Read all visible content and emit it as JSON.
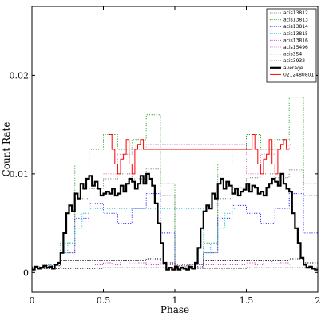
{
  "chart_data": {
    "type": "line",
    "xlabel": "Phase",
    "ylabel": "Count Rate",
    "xlim": [
      0,
      2
    ],
    "ylim": [
      -0.002,
      0.027
    ],
    "x_ticks": [
      {
        "value": 0,
        "label": "0"
      },
      {
        "value": 0.5,
        "label": "0.5"
      },
      {
        "value": 1,
        "label": "1"
      },
      {
        "value": 1.5,
        "label": "1.5"
      },
      {
        "value": 2,
        "label": "2"
      }
    ],
    "y_ticks": [
      {
        "value": 0,
        "label": "0"
      },
      {
        "value": 0.01,
        "label": "0.01"
      },
      {
        "value": 0.02,
        "label": "0.02"
      }
    ],
    "legend_position": "top-right",
    "step_width": 0.02,
    "series": [
      {
        "name": "acis13812",
        "color": "#7f7f7f",
        "style": "dotted",
        "width": 1,
        "x": [
          0.0,
          0.1,
          0.2,
          0.3,
          0.4,
          0.5,
          0.6,
          0.7,
          0.8,
          0.9,
          1.0,
          1.1,
          1.2,
          1.3,
          1.4,
          1.5,
          1.6,
          1.7,
          1.8,
          1.9,
          2.0
        ],
        "y": [
          0.0006,
          0.0004,
          0.002,
          0.0075,
          0.0085,
          0.0095,
          0.01,
          0.0095,
          0.0105,
          0.0078,
          0.0006,
          0.0005,
          0.002,
          0.0075,
          0.0086,
          0.0096,
          0.01,
          0.0096,
          0.0104,
          0.0078,
          0.0006
        ]
      },
      {
        "name": "acis13813",
        "color": "#2ca02c",
        "style": "dotted",
        "width": 1,
        "x": [
          0.0,
          0.1,
          0.2,
          0.3,
          0.4,
          0.5,
          0.6,
          0.7,
          0.8,
          0.9,
          1.0,
          1.1,
          1.2,
          1.3,
          1.4,
          1.5,
          1.6,
          1.7,
          1.8,
          1.9,
          2.0
        ],
        "y": [
          0.0005,
          0.0008,
          0.003,
          0.011,
          0.0125,
          0.014,
          0.0125,
          0.0135,
          0.016,
          0.009,
          0.0005,
          0.0008,
          0.003,
          0.011,
          0.0125,
          0.014,
          0.0125,
          0.0135,
          0.0178,
          0.009,
          0.0005
        ]
      },
      {
        "name": "acis13814",
        "color": "#2a2aff",
        "style": "dotted",
        "width": 1,
        "x": [
          0.0,
          0.1,
          0.2,
          0.3,
          0.4,
          0.5,
          0.6,
          0.7,
          0.8,
          0.9,
          1.0,
          1.1,
          1.2,
          1.3,
          1.4,
          1.5,
          1.6,
          1.7,
          1.8,
          1.9,
          2.0
        ],
        "y": [
          0.0005,
          0.0008,
          0.002,
          0.0055,
          0.007,
          0.006,
          0.005,
          0.0065,
          0.008,
          0.004,
          0.0005,
          0.0008,
          0.002,
          0.0055,
          0.0068,
          0.006,
          0.005,
          0.0065,
          0.008,
          0.004,
          0.0005
        ]
      },
      {
        "name": "acis13815",
        "color": "#17becf",
        "style": "dotted",
        "width": 1,
        "x": [
          0.0,
          0.1,
          0.2,
          0.25,
          0.3,
          0.35,
          0.4,
          1.2,
          1.25,
          1.3,
          1.35,
          1.4
        ],
        "y": [
          0.0005,
          0.0008,
          0.002,
          0.003,
          0.0045,
          0.006,
          0.0065,
          0.002,
          0.003,
          0.0045,
          0.006,
          0.0065
        ]
      },
      {
        "name": "acis13816",
        "color": "#d62fd6",
        "style": "dotted",
        "width": 1,
        "x": [
          0.44,
          0.5,
          0.56,
          0.62,
          0.68,
          0.74,
          0.8,
          1.44,
          1.5,
          1.56,
          1.62,
          1.68,
          1.74,
          1.8
        ],
        "y": [
          0.0008,
          0.001,
          0.0008,
          0.0012,
          0.0009,
          0.001,
          0.0008,
          0.0008,
          0.001,
          0.0008,
          0.0012,
          0.0009,
          0.001,
          0.0008
        ]
      },
      {
        "name": "acis15496",
        "color": "#e377c2",
        "style": "dotted",
        "width": 1,
        "x": [
          0.5,
          0.6,
          0.7,
          0.8,
          1.5,
          1.6,
          1.7,
          1.8
        ],
        "y": [
          0.01,
          0.012,
          0.0125,
          0.013,
          0.01,
          0.012,
          0.0125,
          0.013
        ]
      },
      {
        "name": "acis354",
        "color": "#000000",
        "style": "dotted",
        "width": 1,
        "x": [
          0.0,
          0.1,
          0.2,
          0.8,
          0.9,
          1.0,
          1.1,
          1.2,
          1.8,
          1.9,
          2.0
        ],
        "y": [
          0.0005,
          0.0007,
          0.0012,
          0.0014,
          0.001,
          0.0007,
          0.0006,
          0.0012,
          0.0014,
          0.001,
          0.0007
        ]
      },
      {
        "name": "acis3932",
        "color": "#000000",
        "style": "dotted",
        "width": 0.6,
        "x": [
          0.0,
          0.5,
          1.0,
          1.5,
          2.0
        ],
        "y": [
          0.0004,
          0.0005,
          0.0004,
          0.0005,
          0.0004
        ]
      },
      {
        "name": "average",
        "color": "#000000",
        "style": "solid",
        "width": 2.2,
        "x": [
          0.0,
          0.02,
          0.04,
          0.06,
          0.08,
          0.1,
          0.12,
          0.14,
          0.16,
          0.18,
          0.2,
          0.22,
          0.24,
          0.26,
          0.28,
          0.3,
          0.32,
          0.34,
          0.36,
          0.38,
          0.4,
          0.42,
          0.44,
          0.46,
          0.48,
          0.5,
          0.52,
          0.54,
          0.56,
          0.58,
          0.6,
          0.62,
          0.64,
          0.66,
          0.68,
          0.7,
          0.72,
          0.74,
          0.76,
          0.78,
          0.8,
          0.82,
          0.84,
          0.86,
          0.88,
          0.9,
          0.92,
          0.94,
          0.96,
          0.98,
          1.0,
          1.02,
          1.04,
          1.06,
          1.08,
          1.1,
          1.12,
          1.14,
          1.16,
          1.18,
          1.2,
          1.22,
          1.24,
          1.26,
          1.28,
          1.3,
          1.32,
          1.34,
          1.36,
          1.38,
          1.4,
          1.42,
          1.44,
          1.46,
          1.48,
          1.5,
          1.52,
          1.54,
          1.56,
          1.58,
          1.6,
          1.62,
          1.64,
          1.66,
          1.68,
          1.7,
          1.72,
          1.74,
          1.76,
          1.78,
          1.8,
          1.82,
          1.84,
          1.86,
          1.88,
          1.9,
          1.92,
          1.94,
          1.96,
          1.98
        ],
        "y": [
          0.0003,
          0.0006,
          0.0004,
          0.0005,
          0.0007,
          0.0005,
          0.0006,
          0.0004,
          0.0008,
          0.001,
          0.002,
          0.004,
          0.006,
          0.0068,
          0.0062,
          0.008,
          0.0075,
          0.009,
          0.0085,
          0.0095,
          0.0098,
          0.0088,
          0.0092,
          0.0085,
          0.0078,
          0.008,
          0.0082,
          0.008,
          0.0085,
          0.0078,
          0.008,
          0.0088,
          0.0082,
          0.009,
          0.0095,
          0.0092,
          0.0085,
          0.009,
          0.0098,
          0.009,
          0.01,
          0.0095,
          0.0088,
          0.007,
          0.005,
          0.003,
          0.001,
          0.0003,
          0.0005,
          0.0003,
          0.0006,
          0.0003,
          0.0005,
          0.0004,
          0.0003,
          0.0006,
          0.0004,
          0.001,
          0.0025,
          0.0045,
          0.0062,
          0.0068,
          0.0065,
          0.008,
          0.0075,
          0.009,
          0.0095,
          0.0085,
          0.0092,
          0.0088,
          0.008,
          0.0085,
          0.0078,
          0.0082,
          0.0084,
          0.009,
          0.0082,
          0.0088,
          0.0086,
          0.008,
          0.0082,
          0.0078,
          0.0086,
          0.009,
          0.0095,
          0.0092,
          0.0088,
          0.01,
          0.009,
          0.0085,
          0.0082,
          0.006,
          0.0045,
          0.003,
          0.0015,
          0.0008,
          0.0005,
          0.0006,
          0.0004,
          0.0003
        ]
      },
      {
        "name": "0212480801",
        "color": "#ff0000",
        "style": "solid",
        "width": 1,
        "x": [
          0.54,
          0.56,
          0.58,
          0.6,
          0.62,
          0.64,
          0.66,
          0.68,
          0.7,
          0.72,
          0.74,
          0.76,
          0.78,
          1.54,
          1.56,
          1.58,
          1.6,
          1.62,
          1.64,
          1.66,
          1.68,
          1.7,
          1.72,
          1.74,
          1.76,
          1.78
        ],
        "y": [
          0.014,
          0.0125,
          0.011,
          0.01,
          0.0115,
          0.012,
          0.0135,
          0.011,
          0.01,
          0.0125,
          0.013,
          0.0135,
          0.0125,
          0.014,
          0.0125,
          0.011,
          0.01,
          0.0115,
          0.012,
          0.0135,
          0.011,
          0.01,
          0.0125,
          0.013,
          0.0135,
          0.0125
        ]
      }
    ]
  }
}
